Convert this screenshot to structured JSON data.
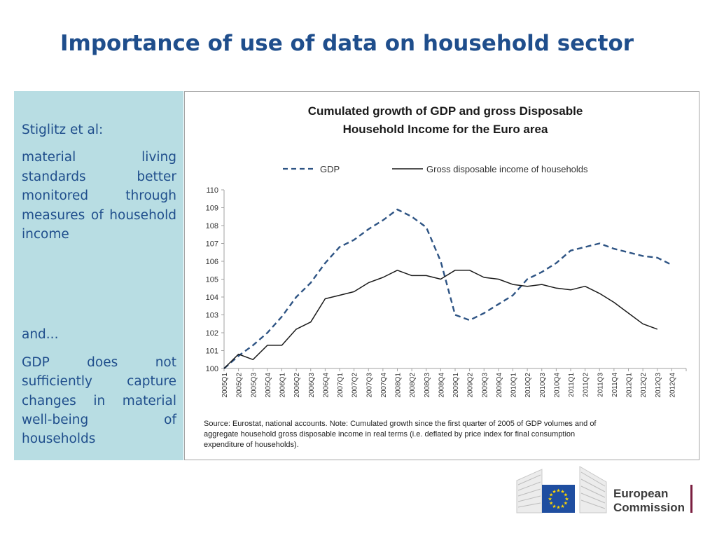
{
  "slide": {
    "title": "Importance of use of data on household sector"
  },
  "left_panel": {
    "heading": "Stiglitz et al:",
    "paragraph1": "material living standards better monitored through measures of household income",
    "and_text": "and...",
    "paragraph2": "GDP does not sufficiently capture changes in material well-being of households"
  },
  "chart_data": {
    "type": "line",
    "title_line1": "Cumulated growth of GDP and gross Disposable",
    "title_line2": "Household Income for the Euro area",
    "categories": [
      "2005Q1",
      "2005Q2",
      "2005Q3",
      "2005Q4",
      "2006Q1",
      "2006Q2",
      "2006Q3",
      "2006Q4",
      "2007Q1",
      "2007Q2",
      "2007Q3",
      "2007Q4",
      "2008Q1",
      "2008Q2",
      "2008Q3",
      "2008Q4",
      "2009Q1",
      "2009Q2",
      "2009Q3",
      "2009Q4",
      "2010Q1",
      "2010Q2",
      "2010Q3",
      "2010Q4",
      "2011Q1",
      "2011Q2",
      "2011Q3",
      "2011Q4",
      "2012Q1",
      "2012Q2",
      "2012Q3",
      "2012Q4"
    ],
    "series": [
      {
        "name": "GDP",
        "style": "dashed",
        "color": "#2e5484",
        "values": [
          100.0,
          100.7,
          101.3,
          102.0,
          102.9,
          104.0,
          104.8,
          105.9,
          106.8,
          107.2,
          107.8,
          108.3,
          108.9,
          108.5,
          107.9,
          106.0,
          103.0,
          102.7,
          103.1,
          103.6,
          104.1,
          105.0,
          105.4,
          105.9,
          106.6,
          106.8,
          107.0,
          106.7,
          106.5,
          106.3,
          106.2,
          105.8
        ]
      },
      {
        "name": "Gross disposable income of households",
        "style": "solid",
        "color": "#1a1a1a",
        "values": [
          100.0,
          100.8,
          100.5,
          101.3,
          101.3,
          102.2,
          102.6,
          103.9,
          104.1,
          104.3,
          104.8,
          105.1,
          105.5,
          105.2,
          105.2,
          105.0,
          105.5,
          105.5,
          105.1,
          105.0,
          104.7,
          104.6,
          104.7,
          104.5,
          104.4,
          104.6,
          104.2,
          103.7,
          103.1,
          102.5,
          102.2,
          null
        ]
      }
    ],
    "ylim": [
      100,
      110
    ],
    "yticks": [
      "100",
      "101",
      "102",
      "103",
      "104",
      "105",
      "106",
      "107",
      "108",
      "109",
      "110"
    ],
    "legend_position": "top",
    "source_note_line1": "Source: Eurostat, national accounts. Note: Cumulated growth since the first quarter of 2005 of GDP volumes and of",
    "source_note_line2": "aggregate household gross disposable income in real terms (i.e. deflated by price index for final consumption",
    "source_note_line3": "expenditure of households)."
  },
  "logo": {
    "line1": "European",
    "line2": "Commission",
    "flag_color": "#1f4ea0",
    "star_color": "#ffd700",
    "bar_color": "#7a1e3f"
  }
}
